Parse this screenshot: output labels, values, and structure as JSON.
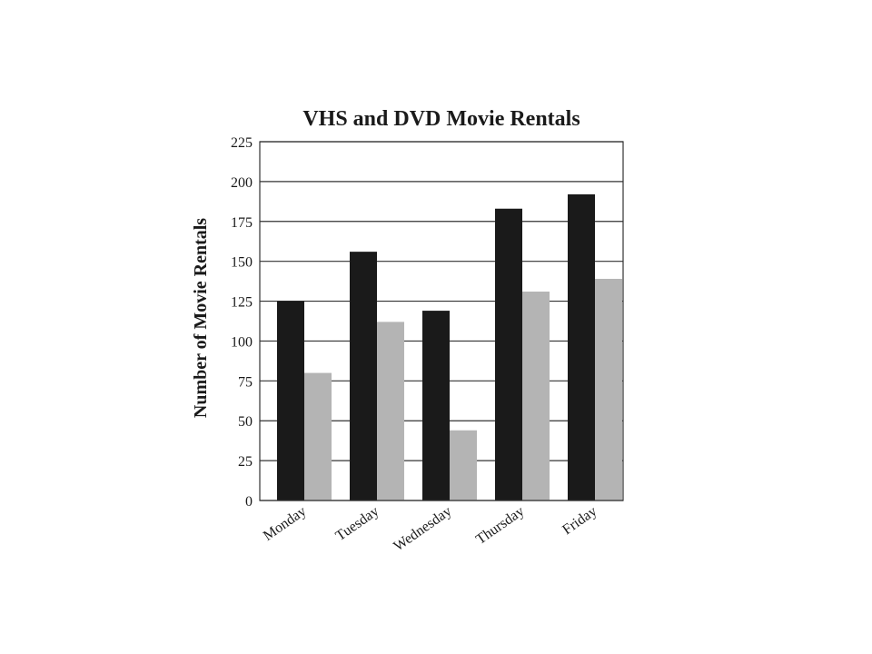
{
  "chart_data": {
    "type": "bar",
    "title": "VHS and DVD Movie Rentals",
    "xlabel": "",
    "ylabel": "Number of Movie Rentals",
    "categories": [
      "Monday",
      "Tuesday",
      "Wednesday",
      "Thursday",
      "Friday"
    ],
    "series": [
      {
        "values": [
          125,
          156,
          119,
          183,
          192
        ],
        "color": "#1a1a1a"
      },
      {
        "values": [
          80,
          112,
          44,
          131,
          139
        ],
        "color": "#b4b4b4"
      }
    ],
    "ylim": [
      0,
      225
    ],
    "yticks": [
      0,
      25,
      50,
      75,
      100,
      125,
      150,
      175,
      200,
      225
    ],
    "grid": true,
    "legend": "none"
  }
}
